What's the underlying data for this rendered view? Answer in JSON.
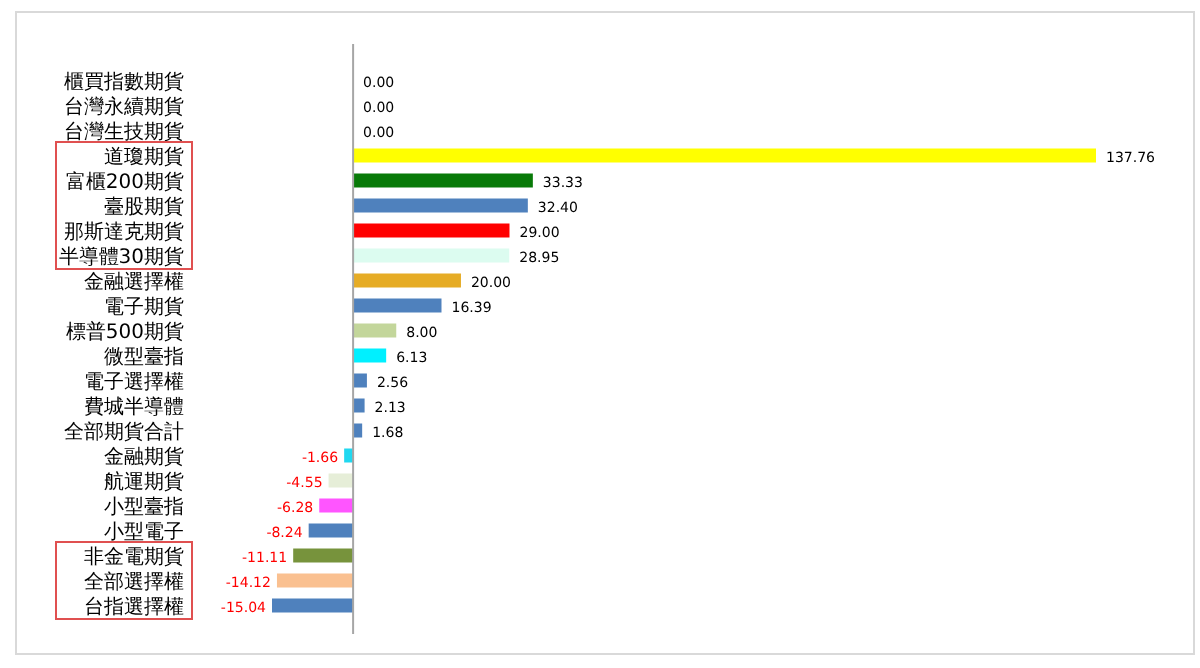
{
  "chart_data": {
    "type": "bar",
    "orientation": "horizontal",
    "categories": [
      "櫃買指數期貨",
      "台灣永續期貨",
      "台灣生技期貨",
      "道瓊期貨",
      "富櫃200期貨",
      "臺股期貨",
      "那斯達克期貨",
      "半導體30期貨",
      "金融選擇權",
      "電子期貨",
      "標普500期貨",
      "微型臺指",
      "電子選擇權",
      "費城半導體",
      "全部期貨合計",
      "金融期貨",
      "航運期貨",
      "小型臺指",
      "小型電子",
      "非金電期貨",
      "全部選擇權",
      "台指選擇權"
    ],
    "values": [
      0.0,
      0.0,
      0.0,
      137.76,
      33.33,
      32.4,
      29.0,
      28.95,
      20.0,
      16.39,
      8.0,
      6.13,
      2.56,
      2.13,
      1.68,
      -1.66,
      -4.55,
      -6.28,
      -8.24,
      -11.11,
      -14.12,
      -15.04
    ],
    "value_labels": [
      "0.00",
      "0.00",
      "0.00",
      "137.76",
      "33.33",
      "32.40",
      "29.00",
      "28.95",
      "20.00",
      "16.39",
      "8.00",
      "6.13",
      "2.56",
      "2.13",
      "1.68",
      "-1.66",
      "-4.55",
      "-6.28",
      "-8.24",
      "-11.11",
      "-14.12",
      "-15.04"
    ],
    "colors": [
      "#4f81bd",
      "#4f81bd",
      "#4f81bd",
      "#ffff00",
      "#087a08",
      "#4f81bd",
      "#ff0000",
      "#dcfcf0",
      "#e6ac25",
      "#4f81bd",
      "#c3d69b",
      "#00f0ff",
      "#4f81bd",
      "#4f81bd",
      "#4f81bd",
      "#20d8f0",
      "#e6eed8",
      "#ff55ff",
      "#4f81bd",
      "#77933c",
      "#fac090",
      "#4f81bd"
    ]
  }
}
